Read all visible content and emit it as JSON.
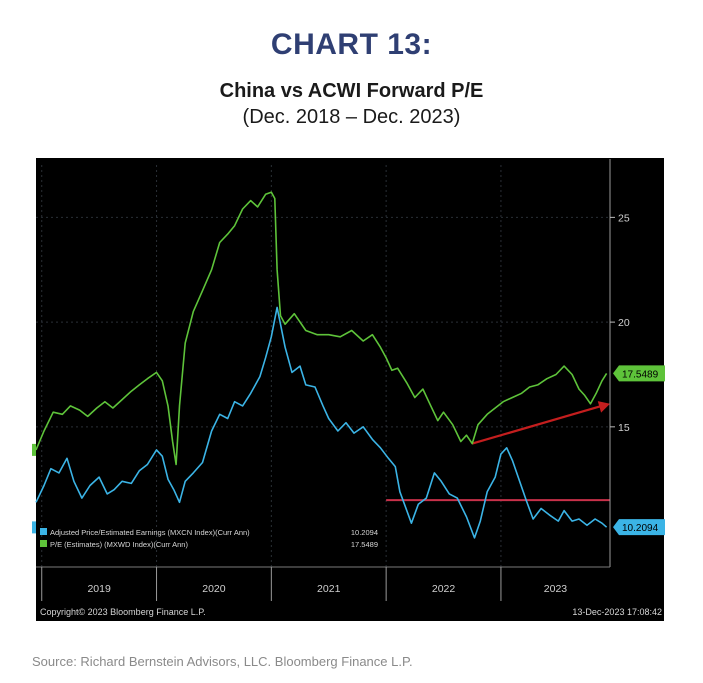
{
  "header": {
    "chart_number": "CHART 13:",
    "title": "China vs ACWI Forward P/E",
    "subtitle": "(Dec. 2018 – Dec. 2023)"
  },
  "source": "Source: Richard Bernstein Advisors, LLC. Bloomberg Finance L.P.",
  "colors": {
    "background": "#000000",
    "china": "#3bb4e6",
    "acwi": "#5ec33a",
    "trend_arrow": "#c41e1e",
    "flat_line": "#c8314a",
    "axis_text": "#cfcfcf"
  },
  "chart_data": {
    "type": "line",
    "xlabel": "",
    "ylabel": "",
    "x_tick_labels": [
      "2019",
      "2020",
      "2021",
      "2022",
      "2023"
    ],
    "xlim": [
      2018.95,
      2023.95
    ],
    "ylim": [
      8.5,
      27.5
    ],
    "y_ticks": [
      15,
      20,
      25
    ],
    "grid": true,
    "legend_position": "bottom-left",
    "copyright": "Copyright© 2023 Bloomberg Finance L.P.",
    "timestamp": "13-Dec-2023 17:08:42",
    "series": [
      {
        "name": "Adjusted Price/Estimated Earnings (MXCN Index)(Curr Ann)",
        "legend_value": "10.2094",
        "last_value_label": "10.2094",
        "color": "#3bb4e6",
        "points": [
          [
            2018.95,
            11.4
          ],
          [
            2019.02,
            12.2
          ],
          [
            2019.08,
            13.0
          ],
          [
            2019.15,
            12.8
          ],
          [
            2019.22,
            13.5
          ],
          [
            2019.28,
            12.4
          ],
          [
            2019.35,
            11.6
          ],
          [
            2019.42,
            12.2
          ],
          [
            2019.5,
            12.6
          ],
          [
            2019.57,
            11.8
          ],
          [
            2019.63,
            12.0
          ],
          [
            2019.7,
            12.4
          ],
          [
            2019.78,
            12.3
          ],
          [
            2019.85,
            12.9
          ],
          [
            2019.92,
            13.2
          ],
          [
            2020.0,
            13.9
          ],
          [
            2020.05,
            13.6
          ],
          [
            2020.1,
            12.5
          ],
          [
            2020.15,
            12.0
          ],
          [
            2020.2,
            11.4
          ],
          [
            2020.25,
            12.4
          ],
          [
            2020.32,
            12.8
          ],
          [
            2020.4,
            13.3
          ],
          [
            2020.48,
            14.8
          ],
          [
            2020.55,
            15.6
          ],
          [
            2020.62,
            15.4
          ],
          [
            2020.68,
            16.2
          ],
          [
            2020.75,
            16.0
          ],
          [
            2020.82,
            16.6
          ],
          [
            2020.9,
            17.4
          ],
          [
            2020.95,
            18.3
          ],
          [
            2021.0,
            19.3
          ],
          [
            2021.05,
            20.7
          ],
          [
            2021.08,
            19.9
          ],
          [
            2021.12,
            18.8
          ],
          [
            2021.18,
            17.6
          ],
          [
            2021.25,
            17.9
          ],
          [
            2021.3,
            17.0
          ],
          [
            2021.38,
            16.9
          ],
          [
            2021.45,
            16.0
          ],
          [
            2021.5,
            15.4
          ],
          [
            2021.58,
            14.8
          ],
          [
            2021.65,
            15.2
          ],
          [
            2021.72,
            14.7
          ],
          [
            2021.8,
            15.0
          ],
          [
            2021.88,
            14.4
          ],
          [
            2021.95,
            14.0
          ],
          [
            2022.02,
            13.5
          ],
          [
            2022.08,
            13.1
          ],
          [
            2022.12,
            11.9
          ],
          [
            2022.18,
            11.0
          ],
          [
            2022.22,
            10.4
          ],
          [
            2022.28,
            11.3
          ],
          [
            2022.35,
            11.6
          ],
          [
            2022.42,
            12.8
          ],
          [
            2022.48,
            12.4
          ],
          [
            2022.55,
            11.8
          ],
          [
            2022.62,
            11.6
          ],
          [
            2022.7,
            10.7
          ],
          [
            2022.77,
            9.7
          ],
          [
            2022.82,
            10.5
          ],
          [
            2022.88,
            11.9
          ],
          [
            2022.95,
            12.6
          ],
          [
            2023.0,
            13.7
          ],
          [
            2023.05,
            14.0
          ],
          [
            2023.1,
            13.4
          ],
          [
            2023.15,
            12.6
          ],
          [
            2023.22,
            11.5
          ],
          [
            2023.28,
            10.6
          ],
          [
            2023.35,
            11.1
          ],
          [
            2023.42,
            10.8
          ],
          [
            2023.5,
            10.5
          ],
          [
            2023.55,
            11.0
          ],
          [
            2023.62,
            10.5
          ],
          [
            2023.68,
            10.6
          ],
          [
            2023.75,
            10.3
          ],
          [
            2023.82,
            10.6
          ],
          [
            2023.88,
            10.4
          ],
          [
            2023.92,
            10.21
          ]
        ]
      },
      {
        "name": "P/E (Estimates) (MXWD Index)(Curr Ann)",
        "legend_value": "17.5489",
        "last_value_label": "17.5489",
        "color": "#5ec33a",
        "points": [
          [
            2018.95,
            13.9
          ],
          [
            2019.02,
            14.8
          ],
          [
            2019.1,
            15.7
          ],
          [
            2019.18,
            15.6
          ],
          [
            2019.25,
            16.0
          ],
          [
            2019.33,
            15.8
          ],
          [
            2019.4,
            15.5
          ],
          [
            2019.48,
            15.9
          ],
          [
            2019.55,
            16.2
          ],
          [
            2019.62,
            15.9
          ],
          [
            2019.7,
            16.3
          ],
          [
            2019.78,
            16.7
          ],
          [
            2019.85,
            17.0
          ],
          [
            2019.92,
            17.3
          ],
          [
            2020.0,
            17.6
          ],
          [
            2020.05,
            17.2
          ],
          [
            2020.1,
            16.0
          ],
          [
            2020.14,
            14.3
          ],
          [
            2020.17,
            13.2
          ],
          [
            2020.2,
            16.0
          ],
          [
            2020.25,
            19.0
          ],
          [
            2020.32,
            20.5
          ],
          [
            2020.4,
            21.5
          ],
          [
            2020.48,
            22.5
          ],
          [
            2020.55,
            23.8
          ],
          [
            2020.62,
            24.2
          ],
          [
            2020.68,
            24.6
          ],
          [
            2020.75,
            25.4
          ],
          [
            2020.82,
            25.8
          ],
          [
            2020.88,
            25.5
          ],
          [
            2020.95,
            26.1
          ],
          [
            2021.0,
            26.2
          ],
          [
            2021.03,
            25.9
          ],
          [
            2021.05,
            22.5
          ],
          [
            2021.08,
            20.3
          ],
          [
            2021.12,
            19.9
          ],
          [
            2021.2,
            20.4
          ],
          [
            2021.3,
            19.6
          ],
          [
            2021.4,
            19.4
          ],
          [
            2021.5,
            19.4
          ],
          [
            2021.6,
            19.3
          ],
          [
            2021.7,
            19.6
          ],
          [
            2021.8,
            19.1
          ],
          [
            2021.88,
            19.4
          ],
          [
            2021.95,
            18.8
          ],
          [
            2022.0,
            18.3
          ],
          [
            2022.05,
            17.7
          ],
          [
            2022.1,
            17.8
          ],
          [
            2022.18,
            17.1
          ],
          [
            2022.25,
            16.4
          ],
          [
            2022.32,
            16.8
          ],
          [
            2022.38,
            16.1
          ],
          [
            2022.45,
            15.3
          ],
          [
            2022.5,
            15.7
          ],
          [
            2022.58,
            15.1
          ],
          [
            2022.65,
            14.3
          ],
          [
            2022.7,
            14.6
          ],
          [
            2022.75,
            14.2
          ],
          [
            2022.8,
            15.1
          ],
          [
            2022.88,
            15.6
          ],
          [
            2022.95,
            15.9
          ],
          [
            2023.02,
            16.2
          ],
          [
            2023.1,
            16.4
          ],
          [
            2023.18,
            16.6
          ],
          [
            2023.25,
            16.9
          ],
          [
            2023.32,
            17.0
          ],
          [
            2023.4,
            17.3
          ],
          [
            2023.48,
            17.5
          ],
          [
            2023.55,
            17.9
          ],
          [
            2023.62,
            17.5
          ],
          [
            2023.68,
            16.8
          ],
          [
            2023.73,
            16.5
          ],
          [
            2023.78,
            16.1
          ],
          [
            2023.83,
            16.6
          ],
          [
            2023.88,
            17.2
          ],
          [
            2023.92,
            17.55
          ]
        ]
      }
    ],
    "annotations": {
      "trend_arrow": {
        "from": [
          2022.75,
          14.2
        ],
        "to": [
          2023.95,
          16.1
        ]
      },
      "flat_line": {
        "x_start": 2022.0,
        "x_end": 2023.95,
        "y": 11.5
      }
    }
  }
}
